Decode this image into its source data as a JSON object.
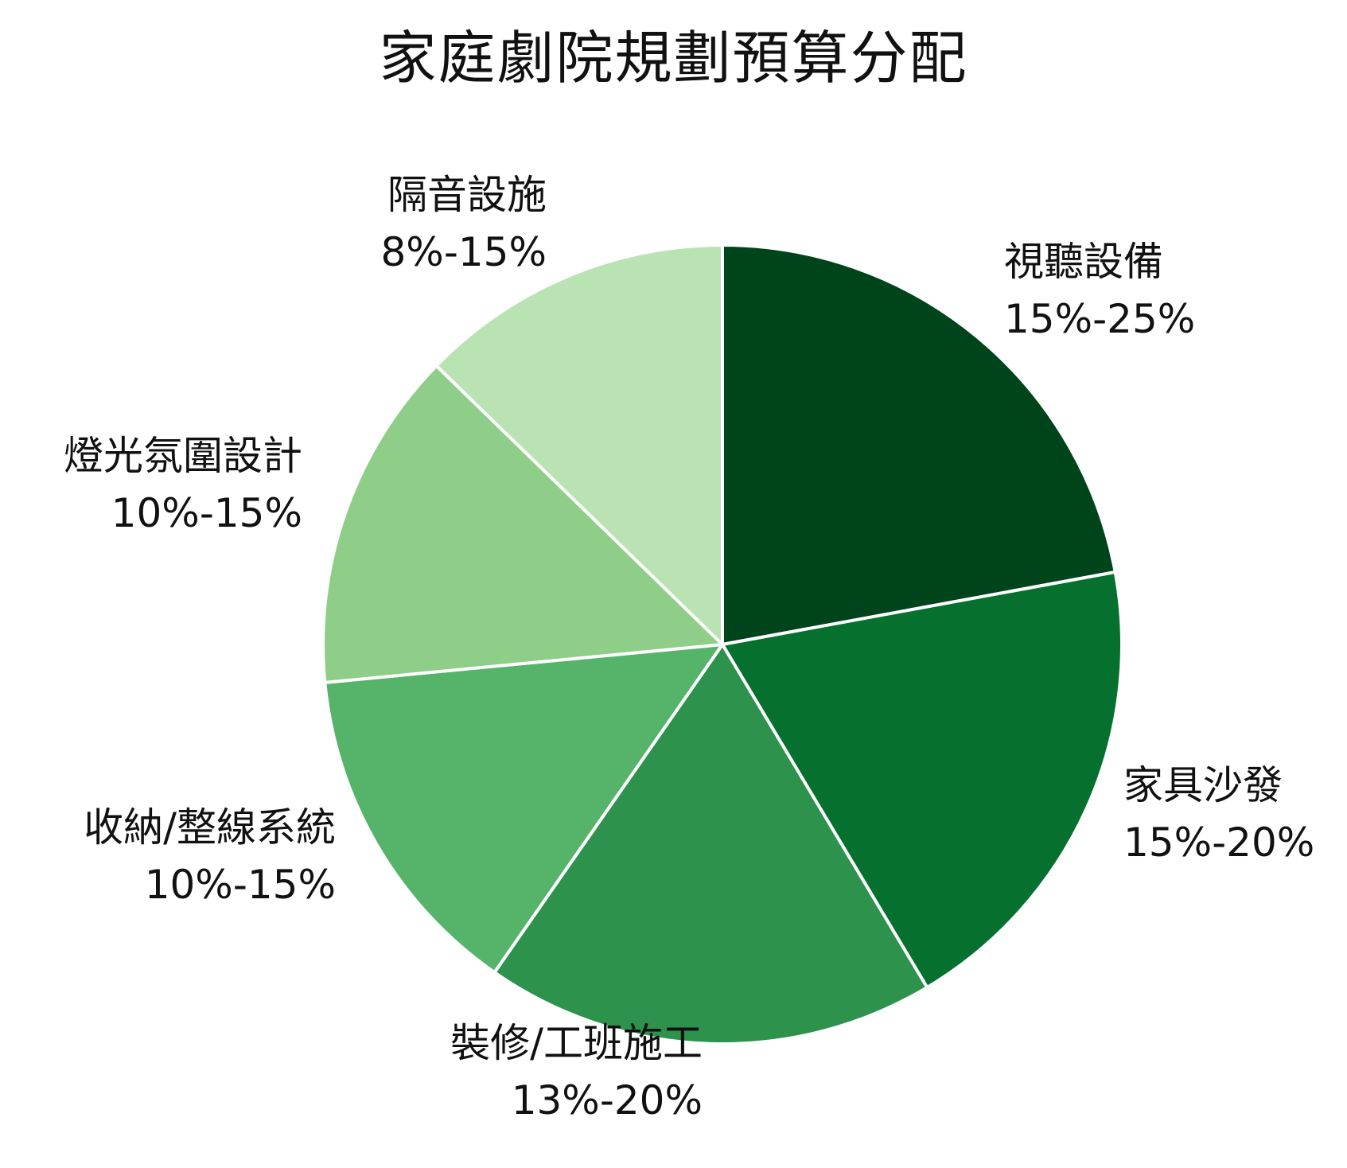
{
  "chart_data": {
    "type": "pie",
    "title": "家庭劇院規劃預算分配",
    "slices": [
      {
        "label": "視聽設備",
        "range": "15%-25%",
        "value": 20,
        "color": "#00441b"
      },
      {
        "label": "家具沙發",
        "range": "15%-20%",
        "value": 17.5,
        "color": "#06702f"
      },
      {
        "label": "裝修/工班施工",
        "range": "13%-20%",
        "value": 16.5,
        "color": "#2c924c"
      },
      {
        "label": "收納/整線系統",
        "range": "10%-15%",
        "value": 12.5,
        "color": "#55b46a"
      },
      {
        "label": "燈光氛圍設計",
        "range": "10%-15%",
        "value": 12.5,
        "color": "#8ece88"
      },
      {
        "label": "隔音設施",
        "range": "8%-15%",
        "value": 11.5,
        "color": "#b9e3b2"
      }
    ],
    "start_angle_deg": 0,
    "direction": "clockwise"
  }
}
